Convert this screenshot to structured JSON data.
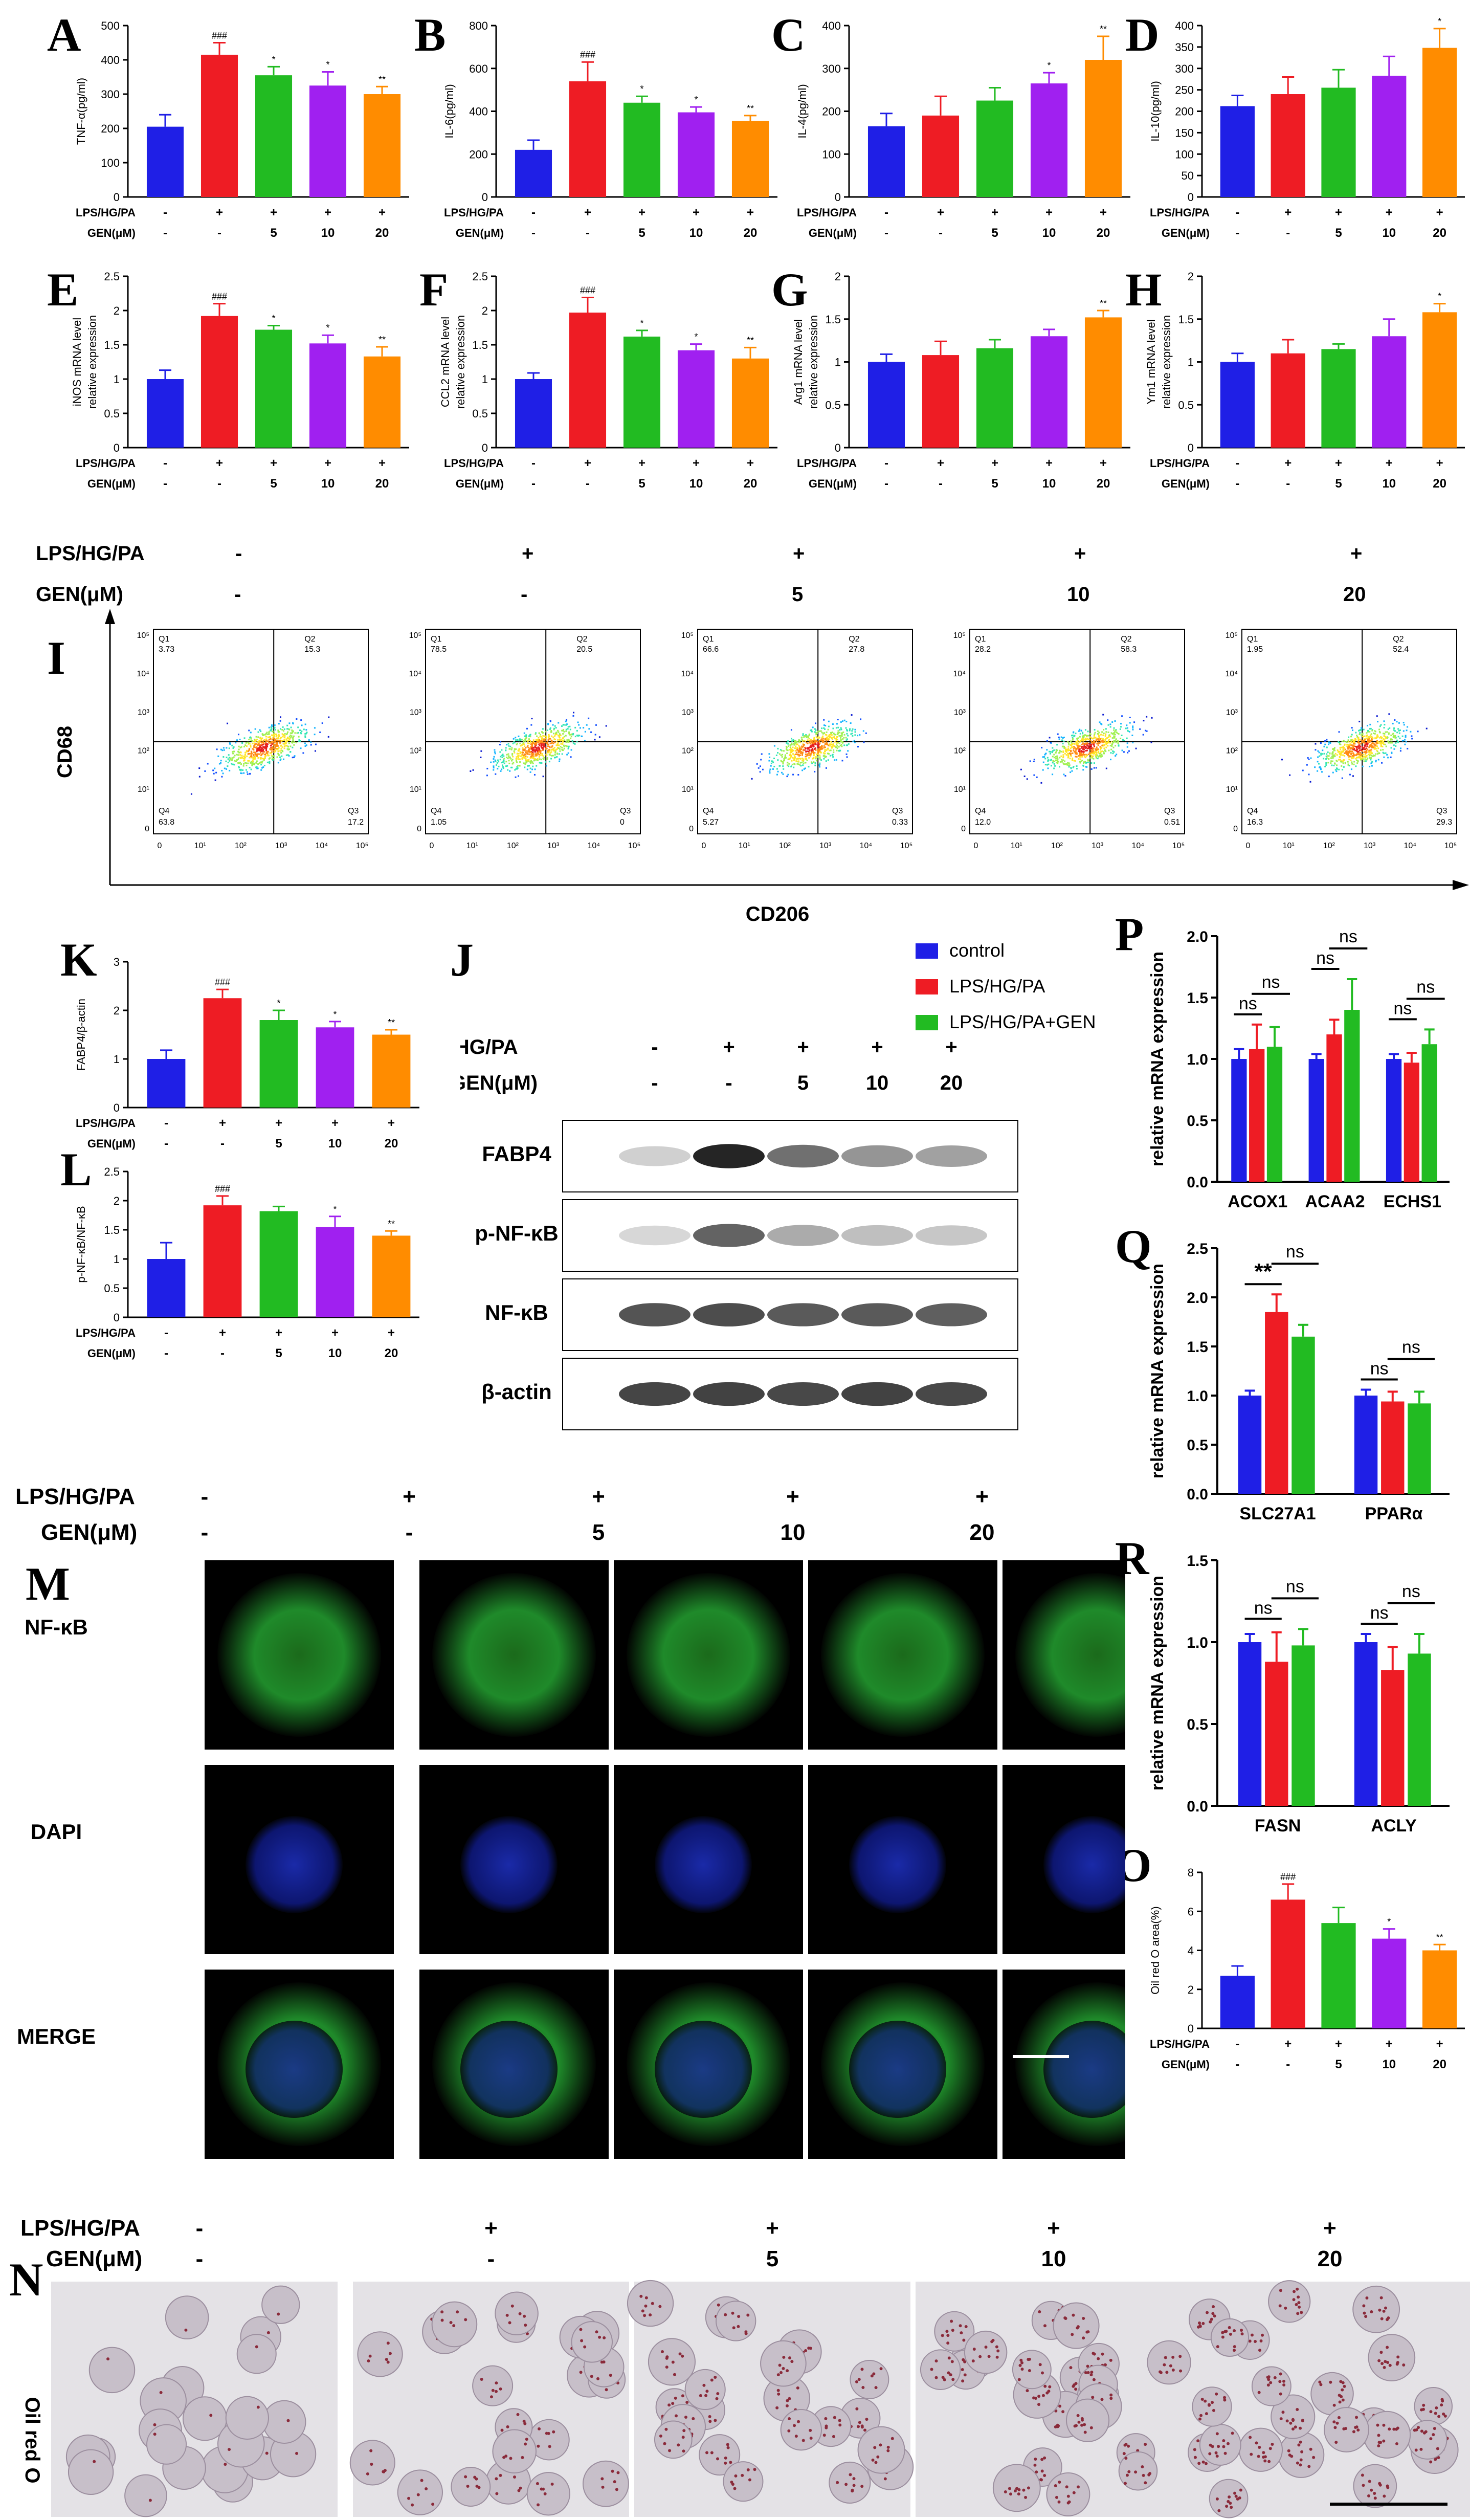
{
  "colors": {
    "g0": "#1f1fe6",
    "g1": "#ee1c24",
    "g2": "#22bb22",
    "g3": "#a020f0",
    "g4": "#ff8c00",
    "axis": "#000000",
    "fitc": "#2a9d2a"
  },
  "cond": {
    "row1": "LPS/HG/PA",
    "row2": "GEN(μM)",
    "lps": [
      "-",
      "+",
      "+",
      "+",
      "+"
    ],
    "gen": [
      "-",
      "-",
      "5",
      "10",
      "20"
    ]
  },
  "small_panels": [
    {
      "id": "A",
      "ylabel": "TNF-α(pg/ml)",
      "ymax": 500,
      "ticks": [
        0,
        100,
        200,
        300,
        400,
        500
      ],
      "values": [
        205,
        415,
        355,
        325,
        300
      ],
      "err": [
        35,
        35,
        25,
        40,
        22
      ],
      "marks": [
        "",
        "###",
        "*",
        "*",
        "**"
      ]
    },
    {
      "id": "B",
      "ylabel": "IL-6(pg/ml)",
      "ymax": 800,
      "ticks": [
        0,
        200,
        400,
        600,
        800
      ],
      "values": [
        220,
        540,
        440,
        395,
        355
      ],
      "err": [
        45,
        90,
        30,
        25,
        25
      ],
      "marks": [
        "",
        "###",
        "*",
        "*",
        "**"
      ]
    },
    {
      "id": "C",
      "ylabel": "IL-4(pg/ml)",
      "ymax": 400,
      "ticks": [
        0,
        100,
        200,
        300,
        400
      ],
      "values": [
        165,
        190,
        225,
        265,
        320
      ],
      "err": [
        30,
        45,
        30,
        25,
        55
      ],
      "marks": [
        "",
        "",
        "",
        "*",
        "**"
      ]
    },
    {
      "id": "D",
      "ylabel": "IL-10(pg/ml)",
      "ymax": 400,
      "ticks": [
        0,
        50,
        100,
        150,
        200,
        250,
        300,
        350,
        400
      ],
      "values": [
        212,
        240,
        255,
        283,
        348
      ],
      "err": [
        25,
        40,
        42,
        45,
        45
      ],
      "marks": [
        "",
        "",
        "",
        "",
        "*"
      ]
    },
    {
      "id": "E",
      "ylabel": "iNOS mRNA level relative expression",
      "ymax": 2.5,
      "ticks": [
        0,
        0.5,
        1.0,
        1.5,
        2.0,
        2.5
      ],
      "values": [
        1.0,
        1.92,
        1.72,
        1.52,
        1.33
      ],
      "err": [
        0.13,
        0.18,
        0.06,
        0.12,
        0.14
      ],
      "marks": [
        "",
        "###",
        "*",
        "*",
        "**"
      ]
    },
    {
      "id": "F",
      "ylabel": "CCL2 mRNA level relative expression",
      "ymax": 2.5,
      "ticks": [
        0,
        0.5,
        1.0,
        1.5,
        2.0,
        2.5
      ],
      "values": [
        1.0,
        1.97,
        1.62,
        1.42,
        1.3
      ],
      "err": [
        0.09,
        0.22,
        0.09,
        0.09,
        0.16
      ],
      "marks": [
        "",
        "###",
        "*",
        "*",
        "**"
      ]
    },
    {
      "id": "G",
      "ylabel": "Arg1 mRNA level relative expression",
      "ymax": 2.0,
      "ticks": [
        0,
        0.5,
        1.0,
        1.5,
        2.0
      ],
      "values": [
        1.0,
        1.08,
        1.16,
        1.3,
        1.52
      ],
      "err": [
        0.09,
        0.16,
        0.1,
        0.08,
        0.08
      ],
      "marks": [
        "",
        "",
        "",
        "",
        "**"
      ]
    },
    {
      "id": "H",
      "ylabel": "Ym1 mRNA level relative expression",
      "ymax": 2.0,
      "ticks": [
        0,
        0.5,
        1.0,
        1.5,
        2.0
      ],
      "values": [
        1.0,
        1.1,
        1.15,
        1.3,
        1.58
      ],
      "err": [
        0.1,
        0.16,
        0.06,
        0.2,
        0.1
      ],
      "marks": [
        "",
        "",
        "",
        "",
        "*"
      ]
    },
    {
      "id": "K",
      "ylabel": "FABP4/β-actin",
      "ymax": 3,
      "ticks": [
        0,
        1,
        2,
        3
      ],
      "values": [
        1.0,
        2.25,
        1.8,
        1.65,
        1.5
      ],
      "err": [
        0.18,
        0.18,
        0.2,
        0.12,
        0.1
      ],
      "marks": [
        "",
        "###",
        "*",
        "*",
        "**"
      ]
    },
    {
      "id": "L",
      "ylabel": "p-NF-κB/NF-κB",
      "ymax": 2.5,
      "ticks": [
        0,
        0.5,
        1.0,
        1.5,
        2.0,
        2.5
      ],
      "values": [
        1.0,
        1.92,
        1.82,
        1.55,
        1.4
      ],
      "err": [
        0.28,
        0.16,
        0.08,
        0.18,
        0.08
      ],
      "marks": [
        "",
        "###",
        "",
        "*",
        "**"
      ]
    },
    {
      "id": "O",
      "ylabel": "Oil red O area(%)",
      "ymax": 8,
      "ticks": [
        0,
        2,
        4,
        6,
        8
      ],
      "values": [
        2.7,
        6.6,
        5.4,
        4.6,
        4.0
      ],
      "err": [
        0.5,
        0.8,
        0.8,
        0.5,
        0.3
      ],
      "marks": [
        "",
        "###",
        "",
        "*",
        "**"
      ]
    }
  ],
  "flow": {
    "panel": "I",
    "ylabel": "CD68",
    "xlabel": "CD206",
    "plots": [
      {
        "q1": "3.73",
        "q2": "15.3",
        "q3": "17.2",
        "q4": "63.8"
      },
      {
        "q1": "78.5",
        "q2": "20.5",
        "q3": "0",
        "q4": "1.05"
      },
      {
        "q1": "66.6",
        "q2": "27.8",
        "q3": "0.33",
        "q4": "5.27"
      },
      {
        "q1": "28.2",
        "q2": "58.3",
        "q3": "0.51",
        "q4": "12.0"
      },
      {
        "q1": "1.95",
        "q2": "52.4",
        "q3": "29.3",
        "q4": "16.3"
      }
    ],
    "qlabels": [
      "Q1",
      "Q2",
      "Q3",
      "Q4"
    ],
    "ticks": [
      "0",
      "10¹",
      "10²",
      "10³",
      "10⁴",
      "10⁵"
    ]
  },
  "western": {
    "panel": "J",
    "rows": [
      "FABP4",
      "p-NF-κB",
      "NF-κB",
      "β-actin"
    ]
  },
  "legend": [
    "control",
    "LPS/HG/PA",
    "LPS/HG/PA+GEN"
  ],
  "pqr": [
    {
      "id": "P",
      "ylabel": "relative mRNA expression",
      "ymax": 2.0,
      "ticks": [
        0,
        0.5,
        1.0,
        1.5,
        2.0
      ],
      "genes": [
        "ACOX1",
        "ACAA2",
        "ECHS1"
      ],
      "values": [
        [
          1.0,
          1.08,
          1.1
        ],
        [
          1.0,
          1.2,
          1.4
        ],
        [
          1.0,
          0.97,
          1.12
        ]
      ],
      "err": [
        [
          0.08,
          0.2,
          0.16
        ],
        [
          0.04,
          0.12,
          0.25
        ],
        [
          0.04,
          0.08,
          0.12
        ]
      ],
      "sig": [
        [
          "ns",
          "ns"
        ],
        [
          "ns",
          "ns"
        ],
        [
          "ns",
          "ns"
        ]
      ]
    },
    {
      "id": "Q",
      "ylabel": "relative mRNA expression",
      "ymax": 2.5,
      "ticks": [
        0,
        0.5,
        1.0,
        1.5,
        2.0,
        2.5
      ],
      "genes": [
        "SLC27A1",
        "PPARα"
      ],
      "values": [
        [
          1.0,
          1.85,
          1.6
        ],
        [
          1.0,
          0.94,
          0.92
        ]
      ],
      "err": [
        [
          0.05,
          0.18,
          0.12
        ],
        [
          0.06,
          0.1,
          0.12
        ]
      ],
      "sig": [
        [
          "**",
          "ns"
        ],
        [
          "ns",
          "ns"
        ]
      ]
    },
    {
      "id": "R",
      "ylabel": "relative mRNA expression",
      "ymax": 1.5,
      "ticks": [
        0,
        0.5,
        1.0,
        1.5
      ],
      "genes": [
        "FASN",
        "ACLY"
      ],
      "values": [
        [
          1.0,
          0.88,
          0.98
        ],
        [
          1.0,
          0.83,
          0.93
        ]
      ],
      "err": [
        [
          0.05,
          0.18,
          0.1
        ],
        [
          0.05,
          0.14,
          0.12
        ]
      ],
      "sig": [
        [
          "ns",
          "ns"
        ],
        [
          "ns",
          "ns"
        ]
      ]
    }
  ],
  "fluor": {
    "panel": "M",
    "rows": [
      "NF-κB",
      "DAPI",
      "MERGE"
    ]
  },
  "oil": {
    "panel": "N",
    "label": "Oil red O"
  }
}
